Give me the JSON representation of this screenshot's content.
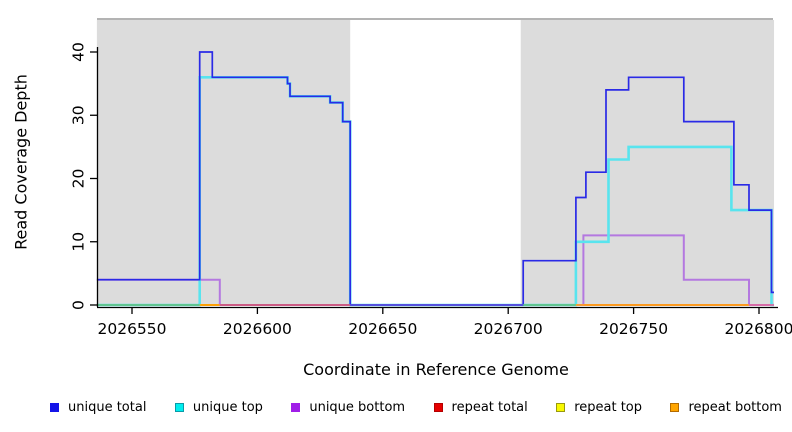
{
  "figure": {
    "x_axis_label": "Coordinate in Reference Genome",
    "y_axis_label": "Read Coverage Depth"
  },
  "legend": {
    "items": [
      {
        "label": "unique total",
        "swatch_color": "#1414E8",
        "swatch_border": "#1414E8"
      },
      {
        "label": "unique top",
        "swatch_color": "#00EEEE",
        "swatch_border": "#0A9AA8"
      },
      {
        "label": "unique bottom",
        "swatch_color": "#A01EE8",
        "swatch_border": "#A01EE8"
      },
      {
        "label": "repeat total",
        "swatch_color": "#E60000",
        "swatch_border": "#B40000"
      },
      {
        "label": "repeat top",
        "swatch_color": "#F8F800",
        "swatch_border": "#99990F"
      },
      {
        "label": "repeat bottom",
        "swatch_color": "#FFA500",
        "swatch_border": "#B36B00"
      }
    ]
  },
  "chart_data": {
    "type": "line",
    "subtype": "step-coverage",
    "title": "",
    "xlabel": "Coordinate in Reference Genome",
    "ylabel": "Read Coverage Depth",
    "xlim": [
      2026536,
      2026806
    ],
    "ylim": [
      0,
      45
    ],
    "x_ticks": [
      2026550,
      2026600,
      2026650,
      2026700,
      2026750,
      2026800
    ],
    "y_ticks": [
      0,
      10,
      20,
      30,
      40
    ],
    "grid": false,
    "legend_position": "bottom",
    "shaded_regions": [
      {
        "name": "left-gray-region",
        "x1": 2026536,
        "x2": 2026637,
        "color": "#DCDCDC"
      },
      {
        "name": "right-gray-region",
        "x1": 2026705,
        "x2": 2026806,
        "color": "#DCDCDC"
      }
    ],
    "series": [
      {
        "name": "unique_total",
        "legend_label": "unique total",
        "color": "#2A2AE6",
        "line_width": 1.7,
        "steps": [
          [
            2026536,
            4
          ],
          [
            2026577,
            40
          ],
          [
            2026582,
            36
          ],
          [
            2026612,
            35
          ],
          [
            2026613,
            33
          ],
          [
            2026629,
            32
          ],
          [
            2026634,
            29
          ],
          [
            2026637,
            0
          ],
          [
            2026706,
            7
          ],
          [
            2026727,
            17
          ],
          [
            2026731,
            21
          ],
          [
            2026739,
            34
          ],
          [
            2026748,
            36
          ],
          [
            2026770,
            29
          ],
          [
            2026790,
            19
          ],
          [
            2026796,
            15
          ],
          [
            2026805,
            2
          ]
        ],
        "x_end": 2026806
      },
      {
        "name": "unique_top",
        "legend_label": "unique top",
        "color": "#58E4EE",
        "line_width": 2.6,
        "steps": [
          [
            2026536,
            0
          ],
          [
            2026577,
            36
          ],
          [
            2026612,
            35
          ],
          [
            2026613,
            33
          ],
          [
            2026629,
            32
          ],
          [
            2026634,
            29
          ],
          [
            2026637,
            0
          ],
          [
            2026727,
            10
          ],
          [
            2026740,
            23
          ],
          [
            2026748,
            25
          ],
          [
            2026789,
            15
          ],
          [
            2026805,
            0
          ]
        ],
        "x_end": 2026806
      },
      {
        "name": "unique_bottom",
        "legend_label": "unique bottom",
        "color": "#B478E0",
        "line_width": 2.0,
        "steps": [
          [
            2026536,
            4
          ],
          [
            2026585,
            0
          ],
          [
            2026730,
            11
          ],
          [
            2026770,
            4
          ],
          [
            2026796,
            0
          ]
        ],
        "x_end": 2026806
      },
      {
        "name": "repeat_total",
        "legend_label": "repeat total",
        "color": "#DD2222",
        "line_width": 1.6,
        "steps": [
          [
            2026536,
            0
          ]
        ],
        "x_end": 2026806
      },
      {
        "name": "repeat_top",
        "legend_label": "repeat top",
        "color": "#F0F000",
        "line_width": 1.6,
        "steps": [
          [
            2026536,
            0
          ]
        ],
        "x_end": 2026806
      },
      {
        "name": "repeat_bottom",
        "legend_label": "repeat bottom",
        "color": "#FFA500",
        "line_width": 1.6,
        "steps": [
          [
            2026536,
            0
          ]
        ],
        "x_end": 2026806
      }
    ],
    "baseline_overlap_segments": [
      {
        "x1": 2026536,
        "x2": 2026577,
        "color": "#62C183"
      },
      {
        "x1": 2026577,
        "x2": 2026585,
        "color": "#FFA500"
      },
      {
        "x1": 2026585,
        "x2": 2026637,
        "color": "#D05878"
      },
      {
        "x1": 2026637,
        "x2": 2026706,
        "color": "#5A50DC"
      },
      {
        "x1": 2026706,
        "x2": 2026727,
        "color": "#62C183"
      },
      {
        "x1": 2026727,
        "x2": 2026796,
        "color": "#FF9F1E"
      },
      {
        "x1": 2026796,
        "x2": 2026806,
        "color": "#DC6AA0"
      }
    ],
    "plot_frame": {
      "top_border_color": "#9A9A9A",
      "axis_color": "#000000"
    }
  }
}
